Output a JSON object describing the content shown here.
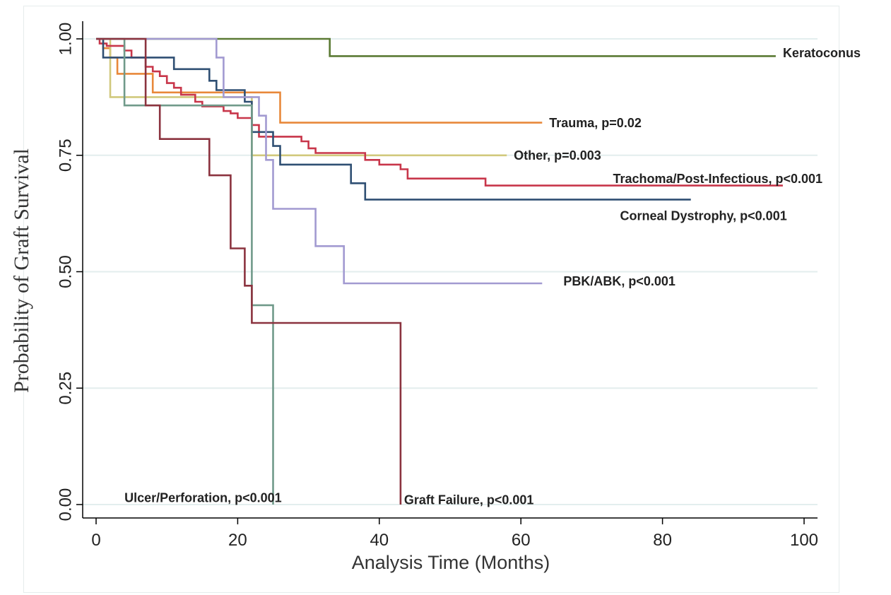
{
  "chart_data": {
    "type": "line",
    "step": true,
    "title": "",
    "xlabel": "Analysis Time (Months)",
    "ylabel": "Probability of Graft Survival",
    "xlim": [
      0,
      100
    ],
    "ylim": [
      0,
      1
    ],
    "xticks": [
      {
        "value": 0,
        "label": "0"
      },
      {
        "value": 20,
        "label": "20"
      },
      {
        "value": 40,
        "label": "40"
      },
      {
        "value": 60,
        "label": "60"
      },
      {
        "value": 80,
        "label": "80"
      },
      {
        "value": 100,
        "label": "100"
      }
    ],
    "yticks": [
      {
        "value": 0,
        "label": "0.00"
      },
      {
        "value": 0.25,
        "label": "0.25"
      },
      {
        "value": 0.5,
        "label": "0.50"
      },
      {
        "value": 0.75,
        "label": "0.75"
      },
      {
        "value": 1,
        "label": "1.00"
      }
    ],
    "grid": true,
    "series": [
      {
        "name": "Keratoconus",
        "color": "#5b7a34",
        "label_at": [
          97,
          0.97
        ],
        "points": [
          [
            0,
            1
          ],
          [
            33,
            1
          ],
          [
            33,
            0.963
          ],
          [
            96,
            0.963
          ]
        ]
      },
      {
        "name": "Trauma, p=0.02",
        "color": "#e8883a",
        "label_at": [
          64,
          0.82
        ],
        "points": [
          [
            0,
            1
          ],
          [
            1,
            1
          ],
          [
            1,
            0.98
          ],
          [
            2,
            0.98
          ],
          [
            2,
            0.96
          ],
          [
            3,
            0.96
          ],
          [
            3,
            0.925
          ],
          [
            8,
            0.925
          ],
          [
            8,
            0.885
          ],
          [
            26,
            0.885
          ],
          [
            26,
            0.82
          ],
          [
            63,
            0.82
          ]
        ]
      },
      {
        "name": "Other, p=0.003",
        "color": "#d1c97d",
        "label_at": [
          59,
          0.75
        ],
        "points": [
          [
            0,
            1
          ],
          [
            2,
            1
          ],
          [
            2,
            0.875
          ],
          [
            22,
            0.875
          ],
          [
            22,
            0.75
          ],
          [
            58,
            0.75
          ]
        ]
      },
      {
        "name": "Trachoma/Post-Infectious, p<0.001",
        "color": "#c8364a",
        "label_at": [
          73,
          0.7
        ],
        "points": [
          [
            0,
            1
          ],
          [
            0.5,
            1
          ],
          [
            0.5,
            0.99
          ],
          [
            1.5,
            0.99
          ],
          [
            1.5,
            0.985
          ],
          [
            4,
            0.985
          ],
          [
            4,
            0.975
          ],
          [
            5,
            0.975
          ],
          [
            5,
            0.96
          ],
          [
            7,
            0.96
          ],
          [
            7,
            0.94
          ],
          [
            8,
            0.94
          ],
          [
            8,
            0.93
          ],
          [
            9,
            0.93
          ],
          [
            9,
            0.92
          ],
          [
            10,
            0.92
          ],
          [
            10,
            0.905
          ],
          [
            11,
            0.905
          ],
          [
            11,
            0.895
          ],
          [
            12,
            0.895
          ],
          [
            12,
            0.88
          ],
          [
            14,
            0.88
          ],
          [
            14,
            0.865
          ],
          [
            15,
            0.865
          ],
          [
            15,
            0.855
          ],
          [
            18,
            0.855
          ],
          [
            18,
            0.845
          ],
          [
            19,
            0.845
          ],
          [
            19,
            0.84
          ],
          [
            20,
            0.84
          ],
          [
            20,
            0.83
          ],
          [
            22,
            0.83
          ],
          [
            22,
            0.815
          ],
          [
            23,
            0.815
          ],
          [
            23,
            0.79
          ],
          [
            29,
            0.79
          ],
          [
            29,
            0.78
          ],
          [
            30,
            0.78
          ],
          [
            30,
            0.765
          ],
          [
            31,
            0.765
          ],
          [
            31,
            0.755
          ],
          [
            38,
            0.755
          ],
          [
            38,
            0.74
          ],
          [
            40,
            0.74
          ],
          [
            40,
            0.73
          ],
          [
            43,
            0.73
          ],
          [
            43,
            0.72
          ],
          [
            44,
            0.72
          ],
          [
            44,
            0.7
          ],
          [
            55,
            0.7
          ],
          [
            55,
            0.685
          ],
          [
            97,
            0.685
          ]
        ]
      },
      {
        "name": "Corneal Dystrophy, p<0.001",
        "color": "#2f4f73",
        "label_at": [
          74,
          0.62
        ],
        "points": [
          [
            0,
            1
          ],
          [
            1,
            1
          ],
          [
            1,
            0.96
          ],
          [
            11,
            0.96
          ],
          [
            11,
            0.935
          ],
          [
            16,
            0.935
          ],
          [
            16,
            0.91
          ],
          [
            17,
            0.91
          ],
          [
            17,
            0.89
          ],
          [
            21,
            0.89
          ],
          [
            21,
            0.865
          ],
          [
            22,
            0.865
          ],
          [
            22,
            0.8
          ],
          [
            25,
            0.8
          ],
          [
            25,
            0.77
          ],
          [
            26,
            0.77
          ],
          [
            26,
            0.73
          ],
          [
            36,
            0.73
          ],
          [
            36,
            0.69
          ],
          [
            38,
            0.69
          ],
          [
            38,
            0.655
          ],
          [
            84,
            0.655
          ]
        ]
      },
      {
        "name": "PBK/ABK, p<0.001",
        "color": "#a29ad1",
        "label_at": [
          66,
          0.48
        ],
        "points": [
          [
            0,
            1
          ],
          [
            17,
            1
          ],
          [
            17,
            0.96
          ],
          [
            18,
            0.96
          ],
          [
            18,
            0.875
          ],
          [
            23,
            0.875
          ],
          [
            23,
            0.835
          ],
          [
            24,
            0.835
          ],
          [
            24,
            0.74
          ],
          [
            25,
            0.74
          ],
          [
            25,
            0.635
          ],
          [
            31,
            0.635
          ],
          [
            31,
            0.555
          ],
          [
            35,
            0.555
          ],
          [
            35,
            0.475
          ],
          [
            63,
            0.475
          ]
        ]
      },
      {
        "name": "Ulcer/Perforation, p<0.001",
        "color": "#709a8a",
        "label_at": [
          4,
          0.015
        ],
        "points": [
          [
            0,
            1
          ],
          [
            4,
            1
          ],
          [
            4,
            0.857
          ],
          [
            22,
            0.857
          ],
          [
            22,
            0.428
          ],
          [
            25,
            0.428
          ],
          [
            25,
            0
          ]
        ]
      },
      {
        "name": "Graft Failure, p<0.001",
        "color": "#8b333f",
        "label_at": [
          43.5,
          0.01
        ],
        "points": [
          [
            0,
            1
          ],
          [
            7,
            1
          ],
          [
            7,
            0.857
          ],
          [
            9,
            0.857
          ],
          [
            9,
            0.785
          ],
          [
            16,
            0.785
          ],
          [
            16,
            0.707
          ],
          [
            19,
            0.707
          ],
          [
            19,
            0.55
          ],
          [
            21,
            0.55
          ],
          [
            21,
            0.47
          ],
          [
            22,
            0.47
          ],
          [
            22,
            0.39
          ],
          [
            43,
            0.39
          ],
          [
            43,
            0
          ]
        ]
      }
    ]
  }
}
